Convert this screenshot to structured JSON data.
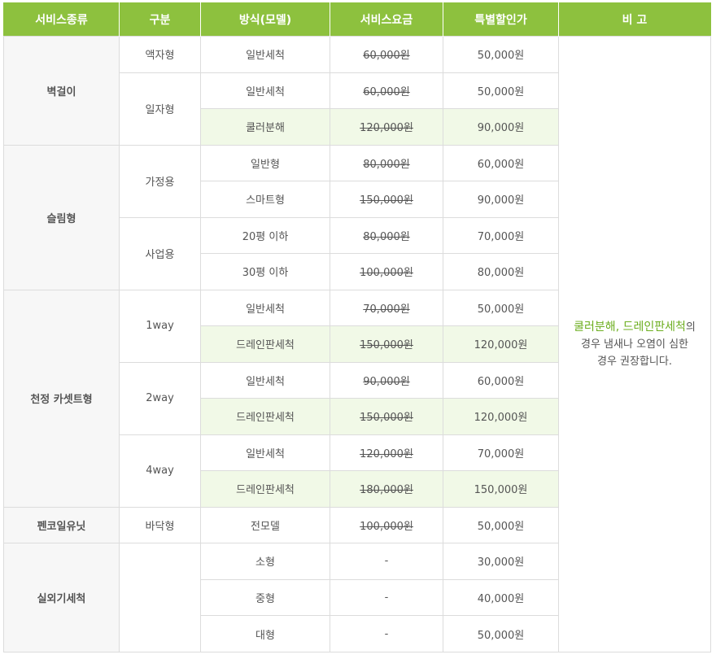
{
  "headers": {
    "type": "서비스종류",
    "sub": "구분",
    "method": "방식(모델)",
    "price": "서비스요금",
    "discount": "특별할인가",
    "note": "비 고"
  },
  "groups": {
    "wall": "벽걸이",
    "slim": "슬림형",
    "ceiling": "천정 카셋트형",
    "fan": "펜코일유닛",
    "outdoor": "실외기세척"
  },
  "subs": {
    "s1": "액자형",
    "s2": "일자형",
    "s3": "가정용",
    "s4": "사업용",
    "s5": "1way",
    "s6": "2way",
    "s7": "4way",
    "s8": "바닥형"
  },
  "rows": [
    {
      "method": "일반세척",
      "price": "60,000원",
      "discount": "50,000원"
    },
    {
      "method": "일반세척",
      "price": "60,000원",
      "discount": "50,000원"
    },
    {
      "method": "쿨러분해",
      "price": "120,000원",
      "discount": "90,000원"
    },
    {
      "method": "일반형",
      "price": "80,000원",
      "discount": "60,000원"
    },
    {
      "method": "스마트형",
      "price": "150,000원",
      "discount": "90,000원"
    },
    {
      "method": "20평 이하",
      "price": "80,000원",
      "discount": "70,000원"
    },
    {
      "method": "30평 이하",
      "price": "100,000원",
      "discount": "80,000원"
    },
    {
      "method": "일반세척",
      "price": "70,000원",
      "discount": "50,000원"
    },
    {
      "method": "드레인판세척",
      "price": "150,000원",
      "discount": "120,000원"
    },
    {
      "method": "일반세척",
      "price": "90,000원",
      "discount": "60,000원"
    },
    {
      "method": "드레인판세척",
      "price": "150,000원",
      "discount": "120,000원"
    },
    {
      "method": "일반세척",
      "price": "120,000원",
      "discount": "70,000원"
    },
    {
      "method": "드레인판세척",
      "price": "180,000원",
      "discount": "150,000원"
    },
    {
      "method": "전모델",
      "price": "100,000원",
      "discount": "50,000원"
    },
    {
      "method": "소형",
      "price": "-",
      "discount": "30,000원"
    },
    {
      "method": "중형",
      "price": "-",
      "discount": "40,000원"
    },
    {
      "method": "대형",
      "price": "-",
      "discount": "50,000원"
    }
  ],
  "note": {
    "highlight1": "쿨러분해",
    "sep": ", ",
    "highlight2": "드레인판세척",
    "tail": "의",
    "line2": "경우 냄새나 오염이 심한",
    "line3": "경우 권장합니다."
  },
  "colors": {
    "header_bg": "#8dc13e",
    "discount": "#ee5f00",
    "highlight_row": "#f1f9e7",
    "note_highlight": "#6cae1f"
  }
}
